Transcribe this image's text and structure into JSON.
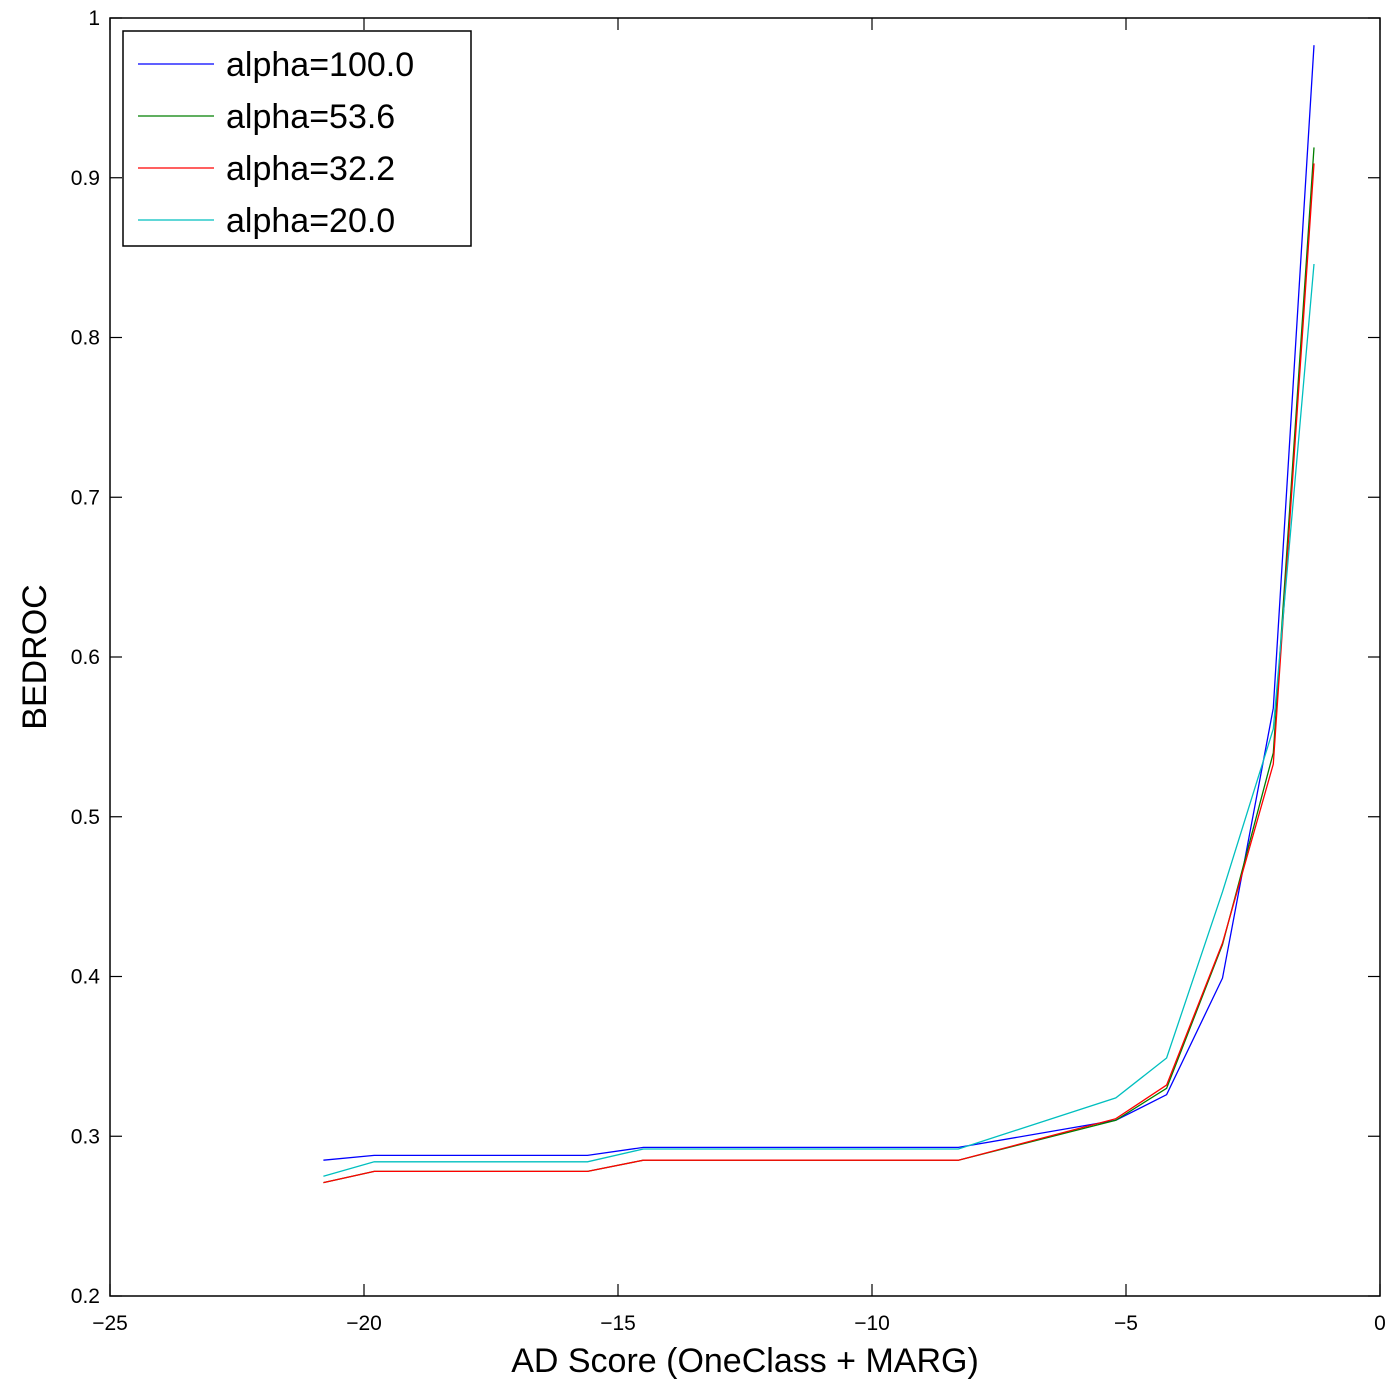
{
  "chart_data": {
    "type": "line",
    "title": "",
    "xlabel": "AD Score (OneClass + MARG)",
    "ylabel": "BEDROC",
    "xlim": [
      -25,
      0
    ],
    "ylim": [
      0.2,
      1.0
    ],
    "xticks": [
      -25,
      -20,
      -15,
      -10,
      -5,
      0
    ],
    "yticks": [
      0.2,
      0.3,
      0.4,
      0.5,
      0.6,
      0.7,
      0.8,
      0.9,
      1.0
    ],
    "xtick_labels": [
      "−25",
      "−20",
      "−15",
      "−10",
      "−5",
      "0"
    ],
    "ytick_labels": [
      "0.2",
      "0.3",
      "0.4",
      "0.5",
      "0.6",
      "0.7",
      "0.8",
      "0.9",
      "1"
    ],
    "grid": false,
    "legend_position": "top-left",
    "x": [
      -20.8,
      -19.8,
      -15.6,
      -14.5,
      -8.3,
      -5.2,
      -4.2,
      -3.1,
      -2.1,
      -1.3
    ],
    "series": [
      {
        "name": "alpha=100.0",
        "color": "#0000ff",
        "values": [
          0.285,
          0.288,
          0.288,
          0.293,
          0.293,
          0.31,
          0.326,
          0.399,
          0.568,
          0.983
        ]
      },
      {
        "name": "alpha=53.6",
        "color": "#007f00",
        "values": [
          0.271,
          0.278,
          0.278,
          0.285,
          0.285,
          0.31,
          0.33,
          0.42,
          0.54,
          0.919
        ]
      },
      {
        "name": "alpha=32.2",
        "color": "#ff0000",
        "values": [
          0.271,
          0.278,
          0.278,
          0.285,
          0.285,
          0.311,
          0.332,
          0.421,
          0.533,
          0.909
        ]
      },
      {
        "name": "alpha=20.0",
        "color": "#00bfbf",
        "values": [
          0.275,
          0.284,
          0.284,
          0.292,
          0.292,
          0.324,
          0.349,
          0.453,
          0.555,
          0.846
        ]
      }
    ]
  }
}
